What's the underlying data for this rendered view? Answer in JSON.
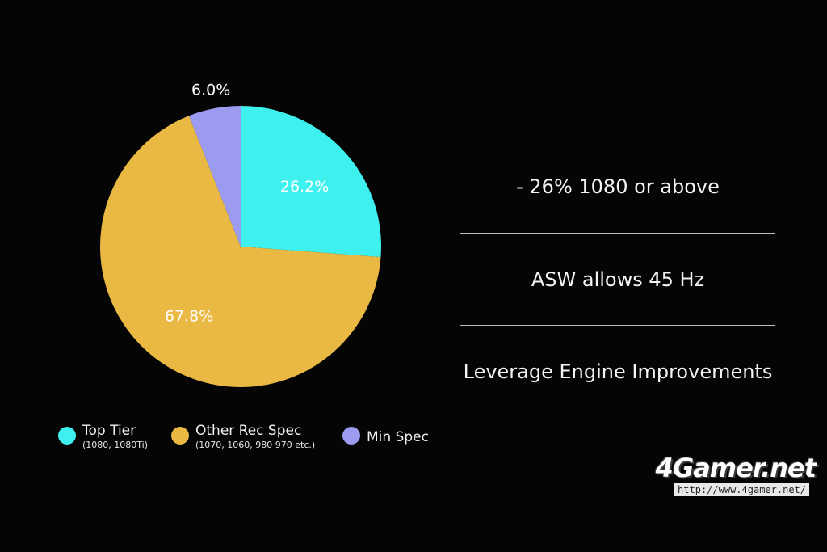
{
  "chart_data": {
    "type": "pie",
    "categories": [
      "Top Tier",
      "Other Rec Spec",
      "Min Spec"
    ],
    "values": [
      26.2,
      67.8,
      6.0
    ],
    "value_labels": [
      "26.2%",
      "67.8%",
      "6.0%"
    ],
    "colors": [
      "#3ef1ee",
      "#eab944",
      "#9b9bef"
    ],
    "start_angle_deg": 0,
    "direction": "clockwise",
    "legend_placement": "bottom",
    "legend": [
      {
        "name": "Top Tier",
        "detail": "(1080, 1080Ti)",
        "color": "#3ef1ee"
      },
      {
        "name": "Other Rec Spec",
        "detail": "(1070, 1060, 980 970 etc.)",
        "color": "#eab944"
      },
      {
        "name": "Min Spec",
        "detail": "",
        "color": "#9b9bef"
      }
    ]
  },
  "points": [
    "- 26% 1080 or above",
    "ASW allows 45 Hz",
    "Leverage Engine Improvements"
  ],
  "watermark": {
    "logo": "4Gamer.net",
    "url": "http://www.4gamer.net/"
  }
}
